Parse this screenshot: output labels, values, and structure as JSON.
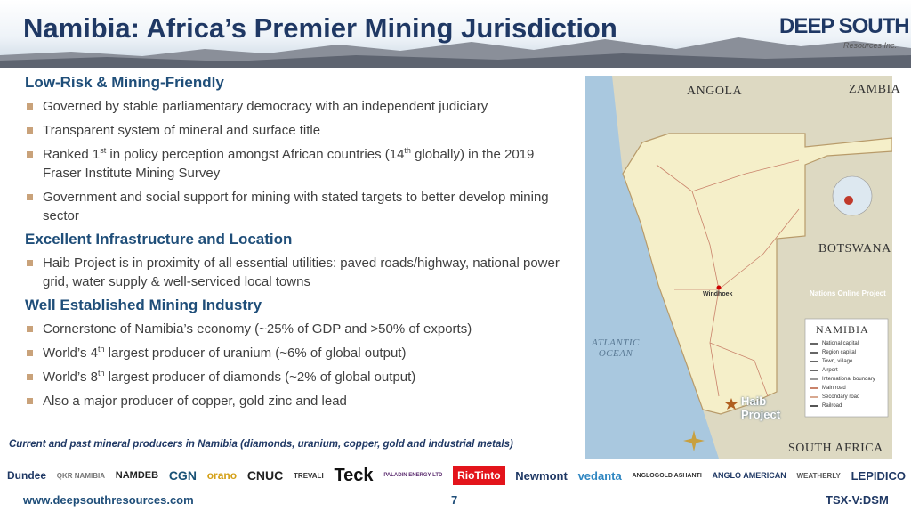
{
  "header": {
    "title": "Namibia: Africa’s Premier Mining Jurisdiction",
    "logo": "DEEP SOUTH",
    "logo_sub": "Resources Inc."
  },
  "sections": [
    {
      "heading": "Low-Risk & Mining-Friendly",
      "bullets": [
        {
          "parts": [
            "Governed by stable parliamentary democracy with an independent judiciary"
          ]
        },
        {
          "parts": [
            "Transparent system of mineral and surface title"
          ]
        },
        {
          "parts": [
            "Ranked 1",
            "st",
            " in policy perception amongst African countries (14",
            "th",
            " globally) in the 2019 Fraser Institute Mining Survey"
          ]
        },
        {
          "parts": [
            "Government and social support for mining with stated targets to better develop mining sector"
          ]
        }
      ]
    },
    {
      "heading": "Excellent Infrastructure and Location",
      "bullets": [
        {
          "parts": [
            "Haib Project is in proximity of all essential utilities: paved roads/highway, national power grid, water supply & well-serviced local towns"
          ]
        }
      ]
    },
    {
      "heading": "Well Established Mining Industry",
      "bullets": [
        {
          "parts": [
            "Cornerstone of Namibia’s economy (~25% of GDP and >50% of exports)"
          ]
        },
        {
          "parts": [
            "World’s 4",
            "th",
            " largest producer of uranium (~6% of global output)"
          ]
        },
        {
          "parts": [
            "World’s 8",
            "th",
            " largest producer of diamonds (~2% of global output)"
          ]
        },
        {
          "parts": [
            "Also a major producer of copper, gold zinc and lead"
          ]
        }
      ]
    }
  ],
  "map": {
    "countries": [
      "ANGOLA",
      "ZAMBIA",
      "BOTSWANA",
      "SOUTH AFRICA"
    ],
    "ocean": "ATLANTIC OCEAN",
    "city": "Windhoek",
    "project": "Haib Project",
    "credit": "Nations Online Project",
    "legend_title": "NAMIBIA",
    "legend_items": [
      "National capital",
      "Region capital",
      "Town, village",
      "Airport",
      "International boundary",
      "Main road",
      "Secondary road",
      "Railroad"
    ]
  },
  "producers": {
    "caption": "Current and past mineral producers in Namibia (diamonds, uranium, copper, gold and industrial metals)",
    "logos": [
      "Dundee",
      "QKR NAMIBIA",
      "NAMDEB",
      "CGN",
      "orano",
      "CNUC",
      "TREVALI",
      "Teck",
      "PALADIN ENERGY LTD",
      "RioTinto",
      "Newmont",
      "vedanta",
      "ANGLOGOLD ASHANTI",
      "ANGLO AMERICAN",
      "WEATHERLY",
      "LEPIDICO"
    ]
  },
  "footer": {
    "url": "www.deepsouthresources.com",
    "page": "7",
    "ticker": "TSX-V:DSM"
  }
}
